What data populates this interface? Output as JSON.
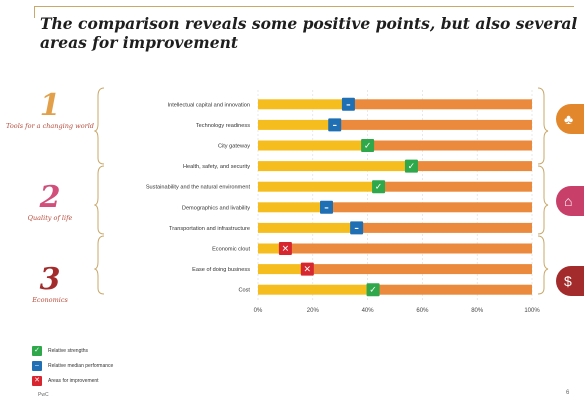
{
  "title": "The comparison reveals some positive points, but also several areas for improvement",
  "sections": [
    {
      "number": "1",
      "label": "Tools for a changing world"
    },
    {
      "number": "2",
      "label": "Quality of life"
    },
    {
      "number": "3",
      "label": "Economics"
    }
  ],
  "legend": [
    {
      "label": "Relative strengths",
      "icon": "check-icon",
      "color": "#2ea84a"
    },
    {
      "label": "Relative median performance",
      "icon": "dash-icon",
      "color": "#1f6fb5"
    },
    {
      "label": "Areas for improvement",
      "icon": "cross-icon",
      "color": "#d7262f"
    }
  ],
  "footer": {
    "source": "PwC",
    "page": "6"
  },
  "colors": {
    "yellow": "#f5be1e",
    "orange": "#eb8a3c",
    "green": "#2ea84a",
    "blue": "#1f6fb5",
    "red": "#d7262f",
    "accent": "#b84a3a"
  },
  "side_icons": [
    "tree-icon",
    "house-icon",
    "money-icon"
  ],
  "chart_data": {
    "type": "bar",
    "orientation": "horizontal",
    "stacked": true,
    "categories": [
      "Intellectual capital and innovation",
      "Technology readiness",
      "City gateway",
      "Health, safety, and security",
      "Sustainability and the natural environment",
      "Demographics and livability",
      "Transportation and infrastructure",
      "Economic clout",
      "Ease of doing business",
      "Cost"
    ],
    "series": [
      {
        "color": "#f5be1e",
        "values": [
          33,
          28,
          40,
          56,
          44,
          25,
          36,
          10,
          18,
          42
        ]
      },
      {
        "color": "#eb8a3c",
        "values": [
          67,
          72,
          60,
          44,
          56,
          75,
          64,
          90,
          82,
          58
        ]
      }
    ],
    "markers": [
      "medium",
      "medium",
      "strength",
      "strength",
      "strength",
      "medium",
      "medium",
      "improvement",
      "improvement",
      "strength"
    ],
    "xticks": [
      "0%",
      "20%",
      "40%",
      "60%",
      "80%",
      "100%"
    ],
    "xlim": [
      0,
      100
    ],
    "grid": true
  }
}
